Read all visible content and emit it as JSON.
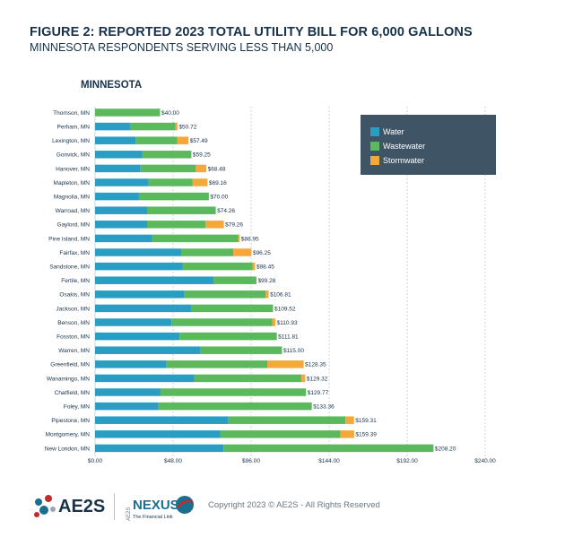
{
  "header": {
    "title": "FIGURE 2: REPORTED 2023 TOTAL UTILITY BILL FOR 6,000 GALLONS",
    "subtitle": "MINNESOTA RESPONDENTS SERVING LESS THAN 5,000"
  },
  "chart_data": {
    "type": "bar",
    "orientation": "horizontal",
    "stacked": true,
    "title": "MINNESOTA",
    "xlim": [
      0,
      240
    ],
    "x_ticks": [
      "$0.00",
      "$48.00",
      "$96.00",
      "$144.00",
      "$192.00",
      "$240.00"
    ],
    "grid": "dashed vertical",
    "legend_position": "top-right",
    "categories": [
      "Thomson, MN",
      "Perham, MN",
      "Lexington, MN",
      "Gonvick, MN",
      "Hanover, MN",
      "Mapleton, MN",
      "Magnolia, MN",
      "Warroad, MN",
      "Gaylord, MN",
      "Pine Island, MN",
      "Fairfax, MN",
      "Sandstone, MN",
      "Fertile, MN",
      "Osakis, MN",
      "Jackson, MN",
      "Benson, MN",
      "Fosston, MN",
      "Warren, MN",
      "Greenfield, MN",
      "Wanamingo, MN",
      "Chatfield, MN",
      "Foley, MN",
      "Pipestone, MN",
      "Montgomery, MN",
      "New London, MN"
    ],
    "series": [
      {
        "name": "Water",
        "color": "#2a9dc2",
        "values": [
          0,
          21.5,
          25,
          29,
          28,
          33,
          27,
          32,
          32,
          35,
          53,
          54,
          73,
          55,
          59,
          47,
          52,
          65,
          44,
          61,
          40,
          39,
          82,
          77,
          79
        ]
      },
      {
        "name": "Wastewater",
        "color": "#5cb85c",
        "values": [
          40,
          28,
          25.5,
          30.25,
          34,
          27,
          43,
          42.26,
          36,
          53,
          32,
          43,
          26.28,
          50,
          50.52,
          62,
          59.81,
          50,
          62,
          66,
          89.77,
          94.36,
          72,
          74,
          129.2
        ]
      },
      {
        "name": "Stormwater",
        "color": "#f5a83a",
        "values": [
          0,
          1.22,
          7,
          0,
          6.48,
          9.16,
          0,
          0,
          11.26,
          0.95,
          11.25,
          1.45,
          0,
          1.81,
          0,
          1.93,
          0,
          0,
          22.35,
          2.32,
          0,
          0,
          5.31,
          8.39,
          0
        ]
      }
    ],
    "totals": [
      "$40.00",
      "$50.72",
      "$57.49",
      "$59.25",
      "$68.48",
      "$69.16",
      "$70.00",
      "$74.26",
      "$79.26",
      "$88.95",
      "$96.25",
      "$98.45",
      "$99.28",
      "$106.81",
      "$109.52",
      "$110.93",
      "$111.81",
      "$115.00",
      "$128.35",
      "$129.32",
      "$129.77",
      "$133.36",
      "$159.31",
      "$159.39",
      "$208.20"
    ]
  },
  "legend": {
    "items": [
      {
        "label": "Water",
        "color": "#2a9dc2"
      },
      {
        "label": "Wastewater",
        "color": "#5cb85c"
      },
      {
        "label": "Stormwater",
        "color": "#f5a83a"
      }
    ]
  },
  "footer": {
    "aes_logo": "AE2S",
    "nexus_logo": "NEXUS",
    "nexus_prefix": "AE2S",
    "nexus_tagline": "The Financial Link",
    "copyright": "Copyright 2023 © AE2S - All Rights Reserved"
  }
}
